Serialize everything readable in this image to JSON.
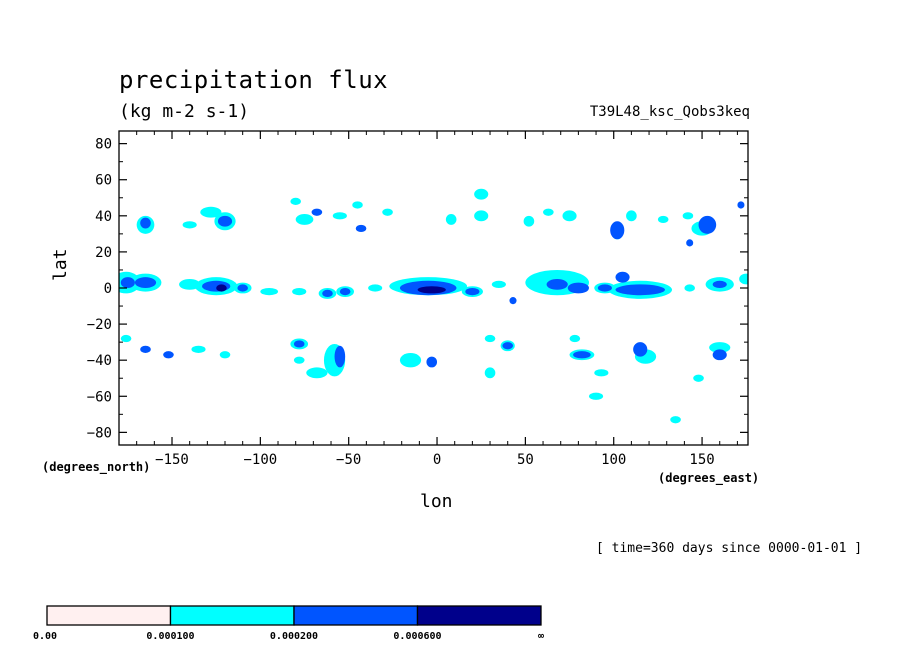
{
  "chart_data": {
    "type": "heatmap",
    "title": "precipitation flux",
    "subtitle": "(kg m-2 s-1)",
    "run_label": "T39L48_ksc_Qobs3keq",
    "xlabel": "lon",
    "ylabel": "lat",
    "x_units": "(degrees_east)",
    "y_units": "(degrees_north)",
    "time_label": "[ time=360 days since 0000-01-01 ]",
    "xlim": [
      -180,
      176
    ],
    "ylim": [
      -87,
      87
    ],
    "x_ticks": [
      -150,
      -100,
      -50,
      0,
      50,
      100,
      150
    ],
    "x_tick_labels": [
      "−150",
      "−100",
      "−50",
      "0",
      "50",
      "100",
      "150"
    ],
    "y_ticks": [
      80,
      60,
      40,
      20,
      0,
      -20,
      -40,
      -60,
      -80
    ],
    "y_tick_labels": [
      "80",
      "60",
      "40",
      "20",
      "0",
      "−20",
      "−40",
      "−60",
      "−80"
    ],
    "levels": [
      {
        "label": "0.00",
        "color": "#fff0f0"
      },
      {
        "label": "0.000100",
        "color": "#00ffff"
      },
      {
        "label": "0.000200",
        "color": "#0055ff"
      },
      {
        "label": "0.000600",
        "color": "#00008b"
      },
      {
        "label": "∞",
        "color": ""
      }
    ],
    "blobs": [
      {
        "lon": -176,
        "lat": 3,
        "rlon": 8,
        "rlat": 6,
        "level": 1
      },
      {
        "lon": -165,
        "lat": 3,
        "rlon": 9,
        "rlat": 5,
        "level": 1
      },
      {
        "lon": -165,
        "lat": 3,
        "rlon": 6,
        "rlat": 3,
        "level": 2
      },
      {
        "lon": -175,
        "lat": 3,
        "rlon": 4,
        "rlat": 3,
        "level": 2
      },
      {
        "lon": -140,
        "lat": 2,
        "rlon": 6,
        "rlat": 3,
        "level": 1
      },
      {
        "lon": -125,
        "lat": 1,
        "rlon": 12,
        "rlat": 5,
        "level": 1
      },
      {
        "lon": -125,
        "lat": 1,
        "rlon": 8,
        "rlat": 3,
        "level": 2
      },
      {
        "lon": -122,
        "lat": 0,
        "rlon": 3,
        "rlat": 2,
        "level": 3
      },
      {
        "lon": -110,
        "lat": 0,
        "rlon": 5,
        "rlat": 3,
        "level": 1
      },
      {
        "lon": -110,
        "lat": 0,
        "rlon": 3,
        "rlat": 2,
        "level": 2
      },
      {
        "lon": -95,
        "lat": -2,
        "rlon": 5,
        "rlat": 2,
        "level": 1
      },
      {
        "lon": -78,
        "lat": -2,
        "rlon": 4,
        "rlat": 2,
        "level": 1
      },
      {
        "lon": -62,
        "lat": -3,
        "rlon": 5,
        "rlat": 3,
        "level": 1
      },
      {
        "lon": -62,
        "lat": -3,
        "rlon": 3,
        "rlat": 2,
        "level": 2
      },
      {
        "lon": -52,
        "lat": -2,
        "rlon": 5,
        "rlat": 3,
        "level": 1
      },
      {
        "lon": -52,
        "lat": -2,
        "rlon": 3,
        "rlat": 2,
        "level": 2
      },
      {
        "lon": -35,
        "lat": 0,
        "rlon": 4,
        "rlat": 2,
        "level": 1
      },
      {
        "lon": -5,
        "lat": 1,
        "rlon": 22,
        "rlat": 5,
        "level": 1
      },
      {
        "lon": -5,
        "lat": 0,
        "rlon": 16,
        "rlat": 4,
        "level": 2
      },
      {
        "lon": -3,
        "lat": -1,
        "rlon": 8,
        "rlat": 2,
        "level": 3
      },
      {
        "lon": 20,
        "lat": -2,
        "rlon": 6,
        "rlat": 3,
        "level": 1
      },
      {
        "lon": 20,
        "lat": -2,
        "rlon": 4,
        "rlat": 2,
        "level": 2
      },
      {
        "lon": 35,
        "lat": 2,
        "rlon": 4,
        "rlat": 2,
        "level": 1
      },
      {
        "lon": 43,
        "lat": -7,
        "rlon": 2,
        "rlat": 2,
        "level": 2
      },
      {
        "lon": 68,
        "lat": 3,
        "rlon": 18,
        "rlat": 7,
        "level": 1
      },
      {
        "lon": 68,
        "lat": 2,
        "rlon": 6,
        "rlat": 3,
        "level": 2
      },
      {
        "lon": 80,
        "lat": 0,
        "rlon": 6,
        "rlat": 3,
        "level": 2
      },
      {
        "lon": 95,
        "lat": 0,
        "rlon": 6,
        "rlat": 3,
        "level": 1
      },
      {
        "lon": 95,
        "lat": 0,
        "rlon": 4,
        "rlat": 2,
        "level": 2
      },
      {
        "lon": 115,
        "lat": -1,
        "rlon": 18,
        "rlat": 5,
        "level": 1
      },
      {
        "lon": 115,
        "lat": -1,
        "rlon": 14,
        "rlat": 3,
        "level": 2
      },
      {
        "lon": 105,
        "lat": 6,
        "rlon": 4,
        "rlat": 3,
        "level": 2
      },
      {
        "lon": 160,
        "lat": 2,
        "rlon": 8,
        "rlat": 4,
        "level": 1
      },
      {
        "lon": 160,
        "lat": 2,
        "rlon": 4,
        "rlat": 2,
        "level": 2
      },
      {
        "lon": 175,
        "lat": 5,
        "rlon": 4,
        "rlat": 3,
        "level": 1
      },
      {
        "lon": 143,
        "lat": 0,
        "rlon": 3,
        "rlat": 2,
        "level": 1
      },
      {
        "lon": -165,
        "lat": 35,
        "rlon": 5,
        "rlat": 5,
        "level": 1
      },
      {
        "lon": -165,
        "lat": 36,
        "rlon": 3,
        "rlat": 3,
        "level": 2
      },
      {
        "lon": -128,
        "lat": 42,
        "rlon": 6,
        "rlat": 3,
        "level": 1
      },
      {
        "lon": -120,
        "lat": 37,
        "rlon": 6,
        "rlat": 5,
        "level": 1
      },
      {
        "lon": -120,
        "lat": 37,
        "rlon": 4,
        "rlat": 3,
        "level": 2
      },
      {
        "lon": -140,
        "lat": 35,
        "rlon": 4,
        "rlat": 2,
        "level": 1
      },
      {
        "lon": -75,
        "lat": 38,
        "rlon": 5,
        "rlat": 3,
        "level": 1
      },
      {
        "lon": -68,
        "lat": 42,
        "rlon": 3,
        "rlat": 2,
        "level": 2
      },
      {
        "lon": -80,
        "lat": 48,
        "rlon": 3,
        "rlat": 2,
        "level": 1
      },
      {
        "lon": -55,
        "lat": 40,
        "rlon": 4,
        "rlat": 2,
        "level": 1
      },
      {
        "lon": -43,
        "lat": 33,
        "rlon": 3,
        "rlat": 2,
        "level": 2
      },
      {
        "lon": -45,
        "lat": 46,
        "rlon": 3,
        "rlat": 2,
        "level": 1
      },
      {
        "lon": -28,
        "lat": 42,
        "rlon": 3,
        "rlat": 2,
        "level": 1
      },
      {
        "lon": 8,
        "lat": 38,
        "rlon": 3,
        "rlat": 3,
        "level": 1
      },
      {
        "lon": 25,
        "lat": 40,
        "rlon": 4,
        "rlat": 3,
        "level": 1
      },
      {
        "lon": 25,
        "lat": 52,
        "rlon": 4,
        "rlat": 3,
        "level": 1
      },
      {
        "lon": 52,
        "lat": 37,
        "rlon": 3,
        "rlat": 3,
        "level": 1
      },
      {
        "lon": 63,
        "lat": 42,
        "rlon": 3,
        "rlat": 2,
        "level": 1
      },
      {
        "lon": 75,
        "lat": 40,
        "rlon": 4,
        "rlat": 3,
        "level": 1
      },
      {
        "lon": 102,
        "lat": 30,
        "rlon": 3,
        "rlat": 3,
        "level": 1
      },
      {
        "lon": 102,
        "lat": 32,
        "rlon": 4,
        "rlat": 5,
        "level": 2
      },
      {
        "lon": 110,
        "lat": 40,
        "rlon": 3,
        "rlat": 3,
        "level": 1
      },
      {
        "lon": 128,
        "lat": 38,
        "rlon": 3,
        "rlat": 2,
        "level": 1
      },
      {
        "lon": 150,
        "lat": 33,
        "rlon": 6,
        "rlat": 4,
        "level": 1
      },
      {
        "lon": 153,
        "lat": 35,
        "rlon": 5,
        "rlat": 5,
        "level": 2
      },
      {
        "lon": 143,
        "lat": 25,
        "rlon": 2,
        "rlat": 2,
        "level": 2
      },
      {
        "lon": 142,
        "lat": 40,
        "rlon": 3,
        "rlat": 2,
        "level": 1
      },
      {
        "lon": 172,
        "lat": 46,
        "rlon": 2,
        "rlat": 2,
        "level": 2
      },
      {
        "lon": -176,
        "lat": -28,
        "rlon": 3,
        "rlat": 2,
        "level": 1
      },
      {
        "lon": -165,
        "lat": -34,
        "rlon": 3,
        "rlat": 2,
        "level": 2
      },
      {
        "lon": -152,
        "lat": -37,
        "rlon": 3,
        "rlat": 2,
        "level": 2
      },
      {
        "lon": -135,
        "lat": -34,
        "rlon": 4,
        "rlat": 2,
        "level": 1
      },
      {
        "lon": -120,
        "lat": -37,
        "rlon": 3,
        "rlat": 2,
        "level": 1
      },
      {
        "lon": -78,
        "lat": -31,
        "rlon": 5,
        "rlat": 3,
        "level": 1
      },
      {
        "lon": -78,
        "lat": -31,
        "rlon": 3,
        "rlat": 2,
        "level": 2
      },
      {
        "lon": -78,
        "lat": -40,
        "rlon": 3,
        "rlat": 2,
        "level": 1
      },
      {
        "lon": -58,
        "lat": -40,
        "rlon": 6,
        "rlat": 9,
        "level": 1
      },
      {
        "lon": -55,
        "lat": -38,
        "rlon": 3,
        "rlat": 6,
        "level": 2
      },
      {
        "lon": -68,
        "lat": -47,
        "rlon": 6,
        "rlat": 3,
        "level": 1
      },
      {
        "lon": -15,
        "lat": -40,
        "rlon": 6,
        "rlat": 4,
        "level": 1
      },
      {
        "lon": -3,
        "lat": -41,
        "rlon": 3,
        "rlat": 3,
        "level": 2
      },
      {
        "lon": 30,
        "lat": -28,
        "rlon": 3,
        "rlat": 2,
        "level": 1
      },
      {
        "lon": 40,
        "lat": -32,
        "rlon": 4,
        "rlat": 3,
        "level": 1
      },
      {
        "lon": 40,
        "lat": -32,
        "rlon": 3,
        "rlat": 2,
        "level": 2
      },
      {
        "lon": 30,
        "lat": -47,
        "rlon": 3,
        "rlat": 3,
        "level": 1
      },
      {
        "lon": 78,
        "lat": -28,
        "rlon": 3,
        "rlat": 2,
        "level": 1
      },
      {
        "lon": 82,
        "lat": -37,
        "rlon": 7,
        "rlat": 3,
        "level": 1
      },
      {
        "lon": 82,
        "lat": -37,
        "rlon": 5,
        "rlat": 2,
        "level": 2
      },
      {
        "lon": 93,
        "lat": -47,
        "rlon": 4,
        "rlat": 2,
        "level": 1
      },
      {
        "lon": 90,
        "lat": -60,
        "rlon": 4,
        "rlat": 2,
        "level": 1
      },
      {
        "lon": 118,
        "lat": -38,
        "rlon": 6,
        "rlat": 4,
        "level": 1
      },
      {
        "lon": 115,
        "lat": -34,
        "rlon": 4,
        "rlat": 4,
        "level": 2
      },
      {
        "lon": 160,
        "lat": -33,
        "rlon": 6,
        "rlat": 3,
        "level": 1
      },
      {
        "lon": 160,
        "lat": -37,
        "rlon": 4,
        "rlat": 3,
        "level": 2
      },
      {
        "lon": 135,
        "lat": -73,
        "rlon": 3,
        "rlat": 2,
        "level": 1
      },
      {
        "lon": 148,
        "lat": -50,
        "rlon": 3,
        "rlat": 2,
        "level": 1
      }
    ]
  }
}
